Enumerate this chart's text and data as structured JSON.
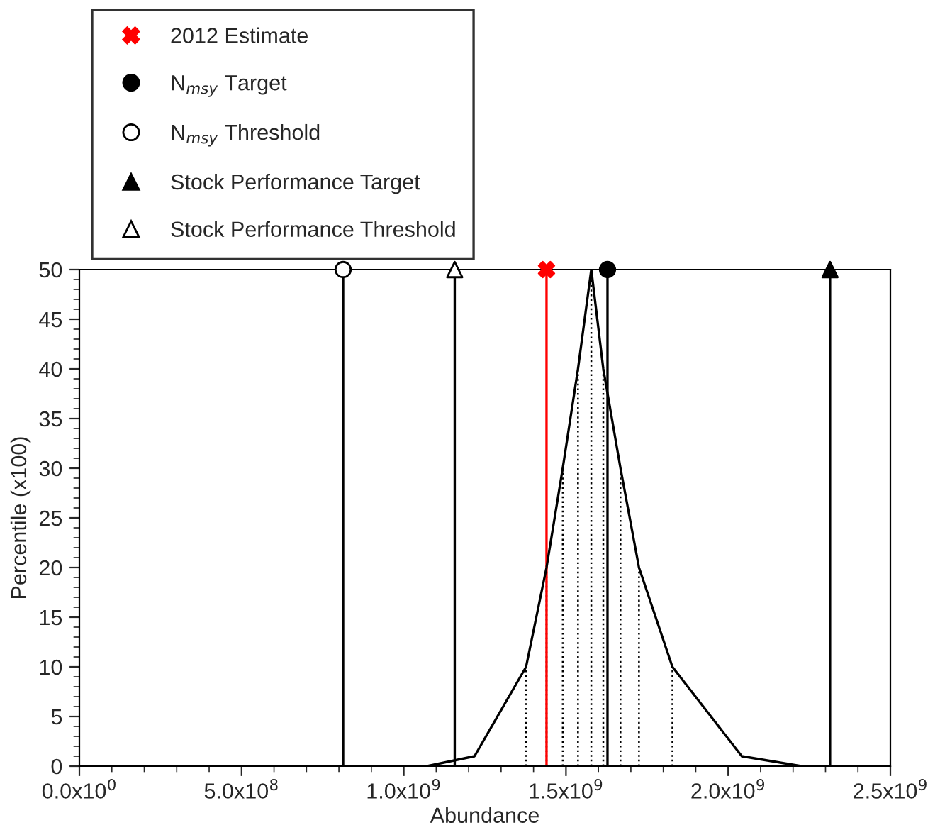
{
  "chart_data": {
    "type": "line",
    "xlabel": "Abundance",
    "ylabel": "Percentile (x100)",
    "xlim": [
      0,
      2500000000
    ],
    "ylim": [
      0,
      50
    ],
    "xticks": [
      {
        "value": 0,
        "label": "0.0x10$^{0}$"
      },
      {
        "value": 500000000,
        "label": "5.0x10$^{8}$"
      },
      {
        "value": 1000000000,
        "label": "1.0x10$^{9}$"
      },
      {
        "value": 1500000000,
        "label": "1.5x10$^{9}$"
      },
      {
        "value": 2000000000,
        "label": "2.0x10$^{9}$"
      },
      {
        "value": 2500000000,
        "label": "2.5x10$^{9}$"
      }
    ],
    "yticks": [
      0,
      5,
      10,
      15,
      20,
      25,
      30,
      35,
      40,
      45,
      50
    ],
    "legend": "top left",
    "grid": false,
    "series": [
      {
        "color": "#000000",
        "marker": "none",
        "x": [
          1072000000,
          1218000000,
          1377000000,
          1440000000,
          1490000000,
          1537000000,
          1578000000,
          1615000000,
          1668000000,
          1725000000,
          1828000000,
          2042000000,
          2225000000
        ],
        "values": [
          0,
          1,
          10,
          20,
          30,
          40,
          50,
          40,
          30,
          20,
          10,
          1,
          0
        ],
        "errors": [
          null,
          null,
          [
            0,
            10
          ],
          [
            0,
            20
          ],
          [
            0,
            30
          ],
          [
            0,
            40
          ],
          [
            0,
            50
          ],
          [
            0,
            40
          ],
          [
            0,
            30
          ],
          [
            0,
            20
          ],
          [
            0,
            10
          ],
          null,
          null
        ]
      },
      {
        "type": "scatter",
        "name": "2012 Estimate",
        "color": "#ff0000",
        "marker": "cross",
        "x": [
          1440000000
        ],
        "values": [
          50
        ]
      },
      {
        "type": "scatter",
        "name": "N$_{msy}$ Target",
        "color": "#000000",
        "marker": "circle",
        "x": [
          1628000000
        ],
        "values": [
          50
        ]
      },
      {
        "type": "scatter",
        "name": "N$_{msy}$ Threshold",
        "color": "#ffffff",
        "marker": "circle",
        "x": [
          813000000
        ],
        "values": [
          50
        ]
      },
      {
        "type": "scatter",
        "name": "Stock Performance Target",
        "color": "#000000",
        "marker": "triangle",
        "x": [
          2314000000
        ],
        "values": [
          50
        ]
      },
      {
        "type": "scatter",
        "name": "Stock Performance Threshold",
        "color": "#ffffff",
        "marker": "triangle",
        "x": [
          1157000000
        ],
        "values": [
          50
        ]
      }
    ],
    "ref_lines": [
      {
        "axis": "x",
        "value": 1440000000,
        "color": "#ff0000"
      },
      {
        "axis": "x",
        "value": 1628000000,
        "color": "#000000"
      },
      {
        "axis": "x",
        "value": 813000000,
        "color": "#000000"
      },
      {
        "axis": "x",
        "value": 2314000000,
        "color": "#000000"
      },
      {
        "axis": "x",
        "value": 1157000000,
        "color": "#000000"
      }
    ]
  }
}
